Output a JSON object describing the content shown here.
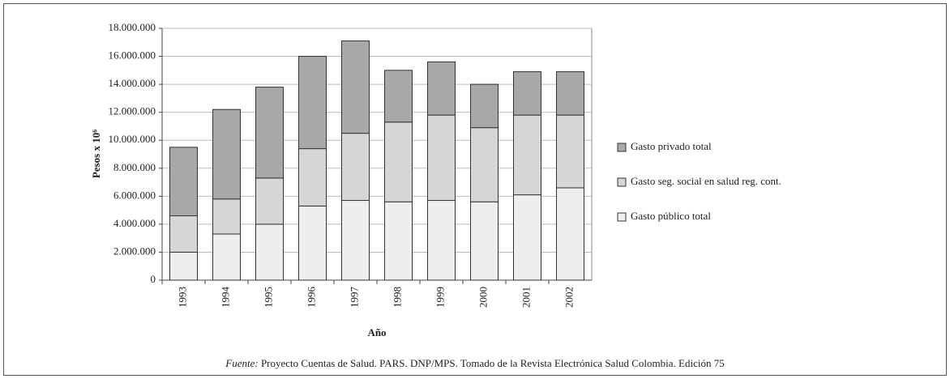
{
  "chart_data": {
    "type": "stacked_bar",
    "y_label": "Pesos x 10⁶",
    "x_label": "Año",
    "source_label": "Fuente:",
    "source": "Proyecto Cuentas de Salud. PARS. DNP/MPS. Tomado de la Revista Electrónica Salud Colombia. Edición 75",
    "categories": [
      "1993",
      "1994",
      "1995",
      "1996",
      "1997",
      "1998",
      "1999",
      "2000",
      "2001",
      "2002"
    ],
    "series": [
      {
        "name": "Gasto público total",
        "color": "#eeeeee",
        "values": [
          2000000,
          3300000,
          4000000,
          5300000,
          5700000,
          5600000,
          5700000,
          5600000,
          6100000,
          6600000
        ]
      },
      {
        "name": "Gasto seg. social en salud reg. cont.",
        "color": "#d6d6d6",
        "values": [
          2600000,
          2500000,
          3300000,
          4100000,
          4800000,
          5700000,
          6100000,
          5300000,
          5700000,
          5200000
        ]
      },
      {
        "name": "Gasto privado total",
        "color": "#a8a8a8",
        "values": [
          4900000,
          6400000,
          6500000,
          6600000,
          6600000,
          3700000,
          3800000,
          3100000,
          3100000,
          3100000
        ]
      }
    ],
    "ylim": [
      0,
      18000000
    ],
    "yticks": [
      0,
      {
        "value": 2000000,
        "label": "2.000.000"
      },
      {
        "value": 4000000,
        "label": "4.000.000"
      },
      {
        "value": 6000000,
        "label": "6.000.000"
      },
      {
        "value": 8000000,
        "label": "8.000.000"
      },
      {
        "value": 10000000,
        "label": "10.000.000"
      },
      {
        "value": 12000000,
        "label": "12.000.000"
      },
      {
        "value": 14000000,
        "label": "14.000.000"
      },
      {
        "value": 16000000,
        "label": "16.000.000"
      },
      {
        "value": 18000000,
        "label": "18.000.000"
      }
    ],
    "grid": true,
    "legend": "right"
  }
}
